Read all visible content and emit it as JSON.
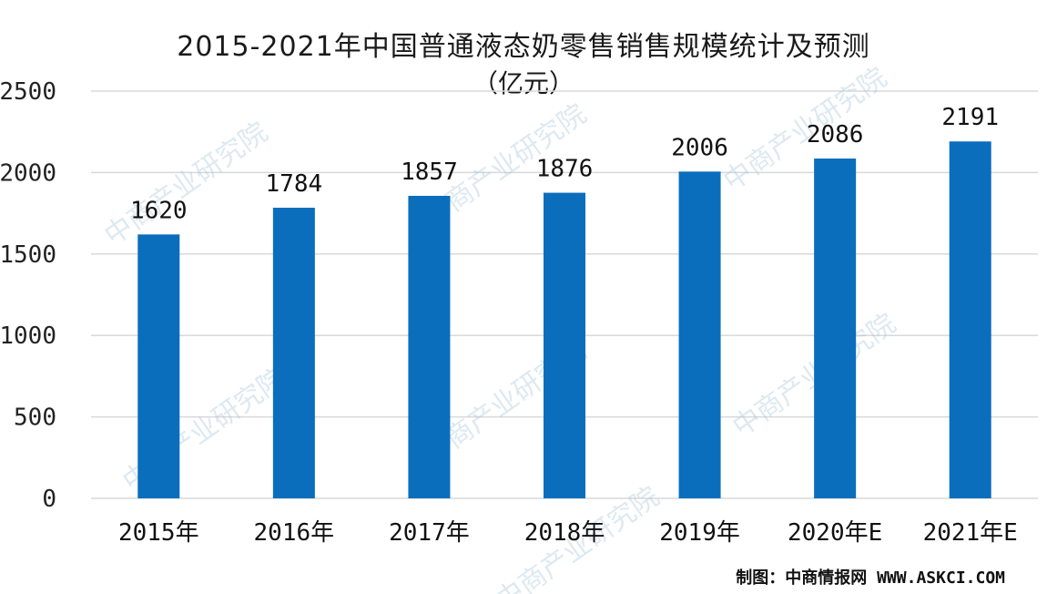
{
  "chart_data": {
    "type": "bar",
    "title": "2015-2021年中国普通液态奶零售销售规模统计及预测",
    "subtitle": "（亿元）",
    "categories": [
      "2015年",
      "2016年",
      "2017年",
      "2018年",
      "2019年",
      "2020年E",
      "2021年E"
    ],
    "values": [
      1620,
      1784,
      1857,
      1876,
      2006,
      2086,
      2191
    ],
    "data_labels": [
      "1620",
      "1784",
      "1857",
      "1876",
      "2006",
      "2086",
      "2191"
    ],
    "ylim": [
      0,
      2500
    ],
    "yticks": [
      0,
      500,
      1000,
      1500,
      2000,
      2500
    ],
    "ytick_labels": [
      "0",
      "500",
      "1000",
      "1500",
      "2000",
      "2500"
    ],
    "grid": true,
    "bar_color": "#0a6ebd",
    "grid_color": "#d9d9d9"
  },
  "watermark": "中商产业研究院",
  "credit": "制图：中商情报网 WWW.ASKCI.COM"
}
